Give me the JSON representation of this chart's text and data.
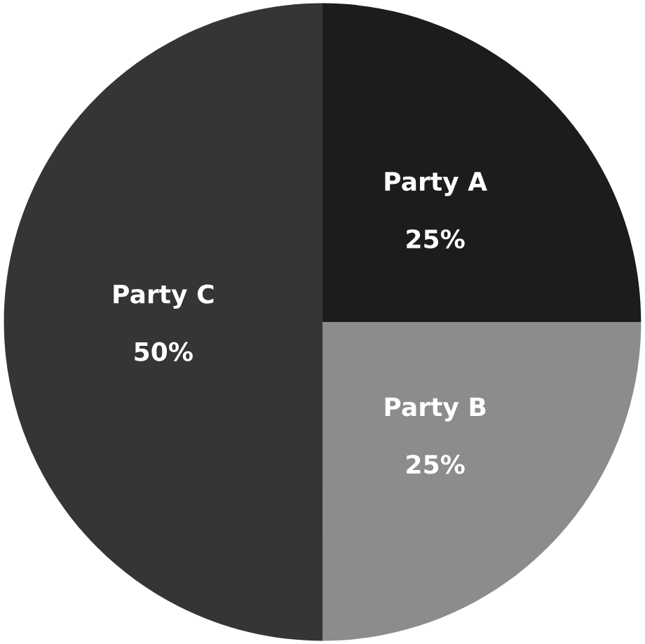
{
  "chart_data": {
    "type": "pie",
    "categories": [
      "Party A",
      "Party B",
      "Party C"
    ],
    "values": [
      25,
      25,
      50
    ],
    "colors": [
      "#1c1c1c",
      "#8c8c8c",
      "#353535"
    ],
    "value_labels": [
      "25%",
      "25%",
      "50%"
    ]
  }
}
